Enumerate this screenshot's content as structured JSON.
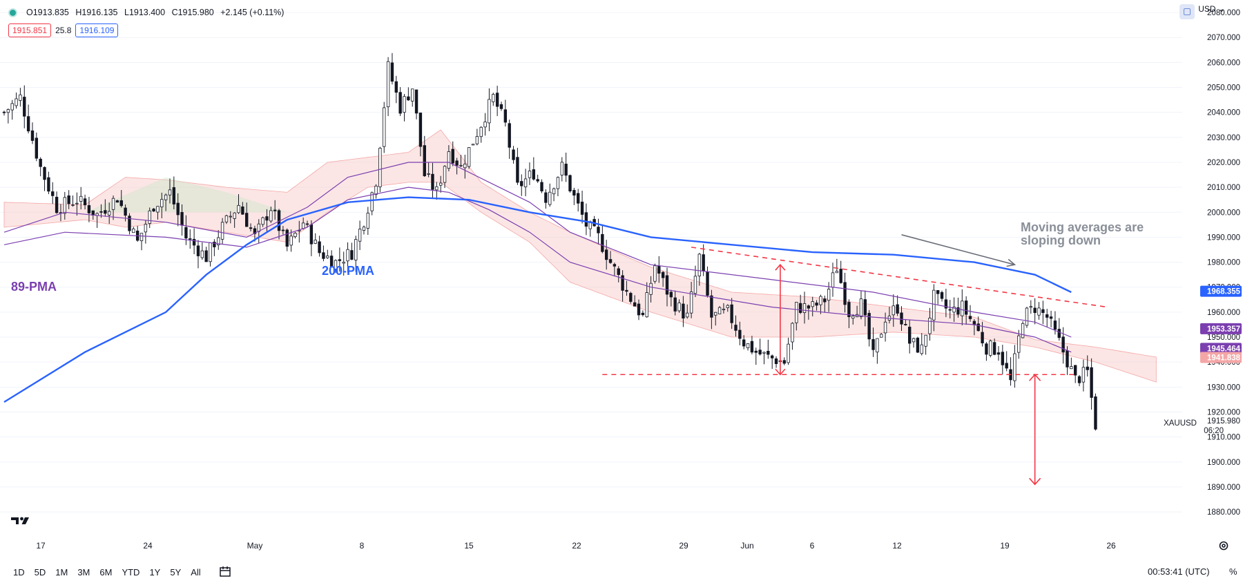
{
  "header": {
    "ohlc_open": "O1913.835",
    "ohlc_high": "H1916.135",
    "ohlc_low": "L1913.400",
    "ohlc_close": "C1915.980",
    "ohlc_change": "+2.145 (+0.11%)",
    "sell_price": "1915.851",
    "spread": "25.8",
    "buy_price": "1916.109",
    "currency": "USD",
    "currency_chevron": "⌄"
  },
  "annotations": {
    "pma89": "89-PMA",
    "pma200": "200-PMA",
    "ma_note_line1": "Moving averages are",
    "ma_note_line2": "sloping down"
  },
  "bottom_bar": {
    "ranges": [
      "1D",
      "5D",
      "1M",
      "3M",
      "6M",
      "YTD",
      "1Y",
      "5Y",
      "All"
    ],
    "clock": "00:53:41 (UTC)",
    "percent": "%"
  },
  "colors": {
    "up": "#131722",
    "down": "#131722",
    "ma200": "#2962ff",
    "ma89": "#7b3fb0",
    "cloud_red": "#f7c7c5",
    "cloud_green": "#c8e6c9",
    "dashed": "#f23645",
    "arrow_red": "#f23645",
    "arrow_grey": "#6a6d78",
    "label_200": "#2962ff",
    "label_89": "#7e57c2",
    "label_cloud": "#f4a6a6"
  },
  "chart_data": {
    "type": "candlestick",
    "symbol": "XAUUSD",
    "x_ticks": [
      "17",
      "24",
      "May",
      "8",
      "15",
      "22",
      "29",
      "Jun",
      "6",
      "12",
      "19",
      "26"
    ],
    "y_ticks": [
      "2080.000",
      "2070.000",
      "2060.000",
      "2050.000",
      "2040.000",
      "2030.000",
      "2020.000",
      "2010.000",
      "2000.000",
      "1990.000",
      "1980.000",
      "1970.000",
      "1960.000",
      "1950.000",
      "1940.000",
      "1930.000",
      "1920.000",
      "1910.000",
      "1900.000",
      "1890.000",
      "1880.000"
    ],
    "ylim": [
      1872,
      2085
    ],
    "price_labels": [
      {
        "value": 1968.355,
        "text": "1968.355",
        "color": "#2962ff"
      },
      {
        "value": 1953.357,
        "text": "1953.357",
        "color": "#7b3fb0"
      },
      {
        "value": 1945.464,
        "text": "1945.464",
        "color": "#7b3fb0"
      },
      {
        "value": 1941.838,
        "text": "1941.838",
        "color": "#f4a6a6"
      }
    ],
    "last_price": {
      "value": 1915.98,
      "text": "1915.980",
      "countdown": "06:20"
    },
    "close_path": [
      [
        0,
        2040
      ],
      [
        4,
        2046
      ],
      [
        9,
        2018
      ],
      [
        13,
        2002
      ],
      [
        18,
        2005
      ],
      [
        23,
        1999
      ],
      [
        28,
        2006
      ],
      [
        33,
        1988
      ],
      [
        37,
        2003
      ],
      [
        41,
        2008
      ],
      [
        45,
        1990
      ],
      [
        50,
        1982
      ],
      [
        54,
        1994
      ],
      [
        58,
        2003
      ],
      [
        62,
        1990
      ],
      [
        66,
        2002
      ],
      [
        70,
        1986
      ],
      [
        74,
        1996
      ],
      [
        78,
        1984
      ],
      [
        82,
        1980
      ],
      [
        86,
        1984
      ],
      [
        89,
        1997
      ],
      [
        92,
        2013
      ],
      [
        95,
        2058
      ],
      [
        98,
        2042
      ],
      [
        101,
        2050
      ],
      [
        104,
        2015
      ],
      [
        107,
        2008
      ],
      [
        110,
        2025
      ],
      [
        113,
        2018
      ],
      [
        117,
        2032
      ],
      [
        121,
        2046
      ],
      [
        124,
        2035
      ],
      [
        127,
        2010
      ],
      [
        131,
        2016
      ],
      [
        134,
        2006
      ],
      [
        138,
        2018
      ],
      [
        141,
        2006
      ],
      [
        144,
        1995
      ],
      [
        147,
        1990
      ],
      [
        150,
        1980
      ],
      [
        154,
        1968
      ],
      [
        158,
        1958
      ],
      [
        161,
        1979
      ],
      [
        165,
        1965
      ],
      [
        169,
        1958
      ],
      [
        172,
        1982
      ],
      [
        175,
        1958
      ],
      [
        179,
        1960
      ],
      [
        183,
        1948
      ],
      [
        186,
        1944
      ],
      [
        189,
        1942
      ],
      [
        193,
        1940
      ],
      [
        196,
        1962
      ],
      [
        200,
        1962
      ],
      [
        203,
        1965
      ],
      [
        206,
        1978
      ],
      [
        209,
        1960
      ],
      [
        212,
        1963
      ],
      [
        215,
        1942
      ],
      [
        218,
        1958
      ],
      [
        221,
        1962
      ],
      [
        224,
        1948
      ],
      [
        227,
        1945
      ],
      [
        230,
        1966
      ],
      [
        234,
        1960
      ],
      [
        237,
        1962
      ],
      [
        240,
        1955
      ],
      [
        243,
        1946
      ],
      [
        246,
        1945
      ],
      [
        249,
        1932
      ],
      [
        252,
        1958
      ],
      [
        255,
        1962
      ],
      [
        258,
        1958
      ],
      [
        261,
        1948
      ],
      [
        265,
        1933
      ],
      [
        268,
        1936
      ],
      [
        270,
        1915
      ]
    ],
    "ma200": [
      [
        0,
        1924
      ],
      [
        20,
        1944
      ],
      [
        40,
        1960
      ],
      [
        50,
        1975
      ],
      [
        60,
        1987
      ],
      [
        70,
        1997
      ],
      [
        85,
        2004
      ],
      [
        100,
        2006
      ],
      [
        115,
        2005
      ],
      [
        130,
        2000
      ],
      [
        145,
        1996
      ],
      [
        160,
        1990
      ],
      [
        180,
        1987
      ],
      [
        200,
        1984
      ],
      [
        220,
        1983
      ],
      [
        240,
        1980
      ],
      [
        255,
        1975
      ],
      [
        264,
        1968
      ]
    ],
    "ma89_upper": [
      [
        0,
        1992
      ],
      [
        15,
        2000
      ],
      [
        40,
        1996
      ],
      [
        60,
        1990
      ],
      [
        75,
        2002
      ],
      [
        85,
        2014
      ],
      [
        100,
        2020
      ],
      [
        110,
        2020
      ],
      [
        120,
        2012
      ],
      [
        130,
        2004
      ],
      [
        140,
        1992
      ],
      [
        160,
        1979
      ],
      [
        190,
        1973
      ],
      [
        215,
        1968
      ],
      [
        240,
        1960
      ],
      [
        255,
        1956
      ],
      [
        264,
        1950
      ]
    ],
    "ma89_lower": [
      [
        0,
        1987
      ],
      [
        15,
        1992
      ],
      [
        40,
        1990
      ],
      [
        60,
        1986
      ],
      [
        75,
        1994
      ],
      [
        85,
        2005
      ],
      [
        100,
        2010
      ],
      [
        110,
        2008
      ],
      [
        120,
        2001
      ],
      [
        130,
        1992
      ],
      [
        140,
        1980
      ],
      [
        160,
        1970
      ],
      [
        190,
        1962
      ],
      [
        215,
        1958
      ],
      [
        240,
        1955
      ],
      [
        255,
        1950
      ],
      [
        264,
        1944
      ]
    ],
    "cloud": {
      "top": [
        [
          0,
          2004
        ],
        [
          20,
          2003
        ],
        [
          30,
          2014
        ],
        [
          40,
          2013
        ],
        [
          55,
          2010
        ],
        [
          70,
          2008
        ],
        [
          80,
          2020
        ],
        [
          90,
          2022
        ],
        [
          100,
          2024
        ],
        [
          108,
          2033
        ],
        [
          118,
          2012
        ],
        [
          130,
          2000
        ],
        [
          140,
          1992
        ],
        [
          160,
          1978
        ],
        [
          180,
          1968
        ],
        [
          200,
          1966
        ],
        [
          220,
          1962
        ],
        [
          240,
          1958
        ],
        [
          255,
          1949
        ],
        [
          270,
          1946
        ],
        [
          285,
          1942
        ]
      ],
      "bottom": [
        [
          0,
          1994
        ],
        [
          20,
          1997
        ],
        [
          30,
          1994
        ],
        [
          40,
          1996
        ],
        [
          55,
          1992
        ],
        [
          70,
          1988
        ],
        [
          80,
          2000
        ],
        [
          90,
          2010
        ],
        [
          100,
          2012
        ],
        [
          108,
          2012
        ],
        [
          118,
          2000
        ],
        [
          130,
          1988
        ],
        [
          140,
          1972
        ],
        [
          160,
          1960
        ],
        [
          180,
          1950
        ],
        [
          200,
          1950
        ],
        [
          220,
          1952
        ],
        [
          240,
          1950
        ],
        [
          255,
          1946
        ],
        [
          270,
          1940
        ],
        [
          285,
          1932
        ]
      ]
    },
    "trendlines": {
      "upper": {
        "from": [
          170,
          1986
        ],
        "to": [
          273,
          1962
        ]
      },
      "support": {
        "from": [
          148,
          1935
        ],
        "to": [
          265,
          1935
        ]
      }
    },
    "arrows": {
      "range": {
        "x": 192,
        "from": 1979,
        "to": 1935
      },
      "target": {
        "x": 255,
        "from": 1935,
        "to": 1891
      },
      "trend": {
        "from": [
          222,
          1991
        ],
        "to": [
          250,
          1979
        ]
      }
    }
  }
}
